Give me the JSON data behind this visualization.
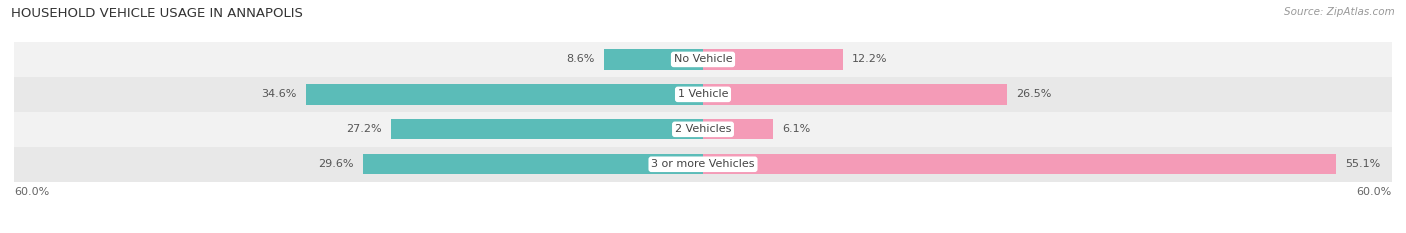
{
  "title": "HOUSEHOLD VEHICLE USAGE IN ANNAPOLIS",
  "source": "Source: ZipAtlas.com",
  "categories": [
    "No Vehicle",
    "1 Vehicle",
    "2 Vehicles",
    "3 or more Vehicles"
  ],
  "owner_values": [
    8.6,
    34.6,
    27.2,
    29.6
  ],
  "renter_values": [
    12.2,
    26.5,
    6.1,
    55.1
  ],
  "owner_color": "#5bbcb8",
  "renter_color": "#f49bb7",
  "row_bg_colors": [
    "#f2f2f2",
    "#e8e8e8",
    "#f2f2f2",
    "#e8e8e8"
  ],
  "xlim": 60.0,
  "title_fontsize": 9.5,
  "label_fontsize": 8.0,
  "source_fontsize": 7.5,
  "bar_height": 0.58,
  "figsize": [
    14.06,
    2.33
  ],
  "dpi": 100
}
